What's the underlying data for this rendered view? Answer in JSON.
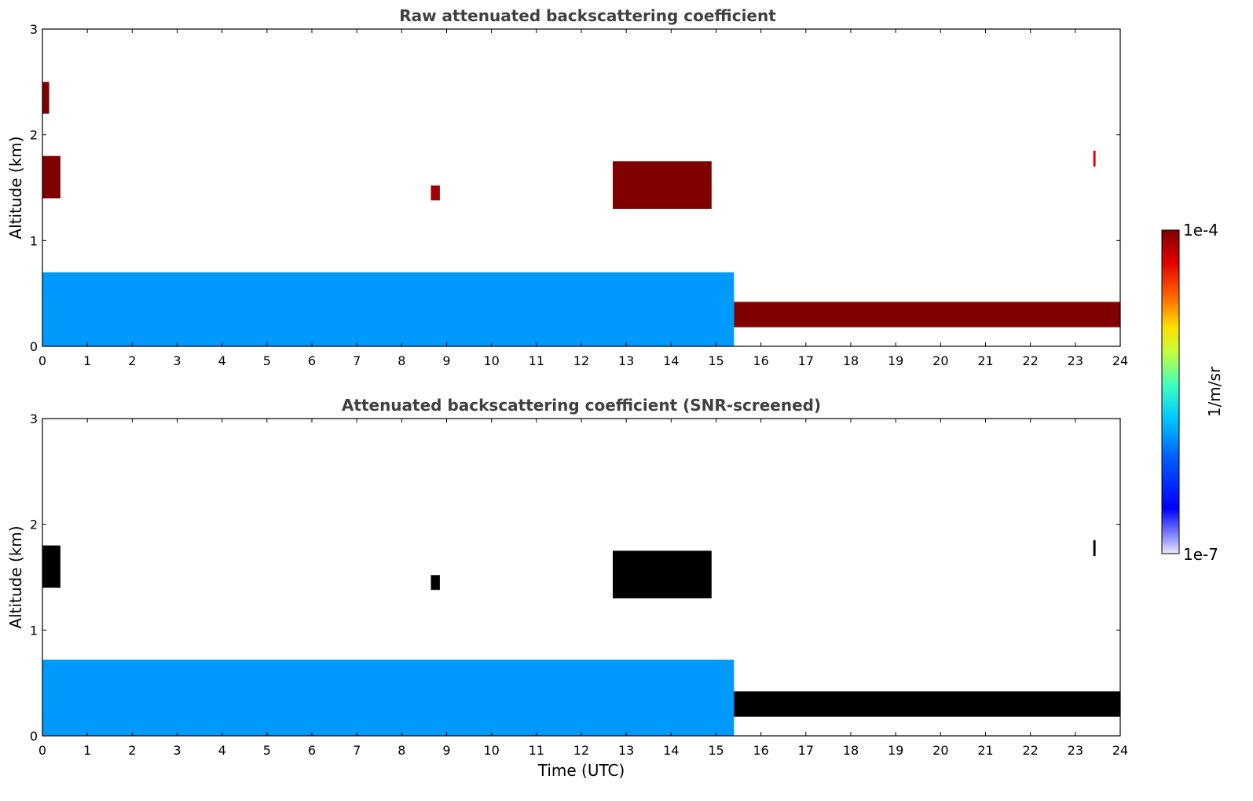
{
  "figure": {
    "colorbar": {
      "label": "1/m/sr",
      "max_label": "1e-4",
      "min_label": "1e-7",
      "scale": "log",
      "colormap": "jet",
      "range": [
        1e-07,
        0.0001
      ]
    }
  },
  "chart_data": [
    {
      "type": "heatmap",
      "title": "Raw attenuated backscattering coefficient",
      "xlabel": "",
      "ylabel": "Altitude (km)",
      "xlim": [
        0,
        24
      ],
      "ylim": [
        0,
        3
      ],
      "xticks": [
        "0",
        "1",
        "2",
        "3",
        "4",
        "5",
        "6",
        "7",
        "8",
        "9",
        "10",
        "11",
        "12",
        "13",
        "14",
        "15",
        "16",
        "17",
        "18",
        "19",
        "20",
        "21",
        "22",
        "23",
        "24"
      ],
      "yticks": [
        "0",
        "1",
        "2",
        "3"
      ],
      "features": [
        {
          "kind": "boundary_layer",
          "x": [
            0,
            15.4
          ],
          "y_top_km": 0.7,
          "log10_value": -5.9
        },
        {
          "kind": "cloud",
          "x": [
            0.0,
            0.4
          ],
          "y_km": [
            1.4,
            1.8
          ],
          "log10_value": -4.0
        },
        {
          "kind": "cloud",
          "x": [
            0.0,
            0.15
          ],
          "y_km": [
            2.2,
            2.5
          ],
          "log10_value": -4.0
        },
        {
          "kind": "cloud",
          "x": [
            8.65,
            8.85
          ],
          "y_km": [
            1.38,
            1.52
          ],
          "log10_value": -4.1
        },
        {
          "kind": "cloud",
          "x": [
            12.7,
            14.9
          ],
          "y_km": [
            1.3,
            1.75
          ],
          "log10_value": -4.0
        },
        {
          "kind": "cloud",
          "x": [
            23.4,
            23.45
          ],
          "y_km": [
            1.7,
            1.85
          ],
          "log10_value": -4.3
        },
        {
          "kind": "low_cloud",
          "x": [
            15.4,
            24.0
          ],
          "y_km": [
            0.18,
            0.42
          ],
          "log10_value": -4.0
        }
      ]
    },
    {
      "type": "heatmap",
      "title": "Attenuated backscattering coefficient (SNR-screened)",
      "xlabel": "Time (UTC)",
      "ylabel": "Altitude (km)",
      "xlim": [
        0,
        24
      ],
      "ylim": [
        0,
        3
      ],
      "xticks": [
        "0",
        "1",
        "2",
        "3",
        "4",
        "5",
        "6",
        "7",
        "8",
        "9",
        "10",
        "11",
        "12",
        "13",
        "14",
        "15",
        "16",
        "17",
        "18",
        "19",
        "20",
        "21",
        "22",
        "23",
        "24"
      ],
      "yticks": [
        "0",
        "1",
        "2",
        "3"
      ],
      "features": [
        {
          "kind": "boundary_layer",
          "x": [
            0,
            15.4
          ],
          "y_top_km": 0.72,
          "log10_value": -5.9
        },
        {
          "kind": "cloud",
          "x": [
            0.0,
            0.4
          ],
          "y_km": [
            1.4,
            1.8
          ],
          "log10_value": -3.6
        },
        {
          "kind": "cloud",
          "x": [
            8.65,
            8.85
          ],
          "y_km": [
            1.38,
            1.52
          ],
          "log10_value": -3.6
        },
        {
          "kind": "cloud",
          "x": [
            12.7,
            14.9
          ],
          "y_km": [
            1.3,
            1.75
          ],
          "log10_value": -3.6
        },
        {
          "kind": "cloud",
          "x": [
            23.4,
            23.45
          ],
          "y_km": [
            1.7,
            1.85
          ],
          "log10_value": -3.6
        },
        {
          "kind": "low_cloud",
          "x": [
            15.4,
            24.0
          ],
          "y_km": [
            0.18,
            0.42
          ],
          "log10_value": -3.6
        }
      ]
    }
  ]
}
